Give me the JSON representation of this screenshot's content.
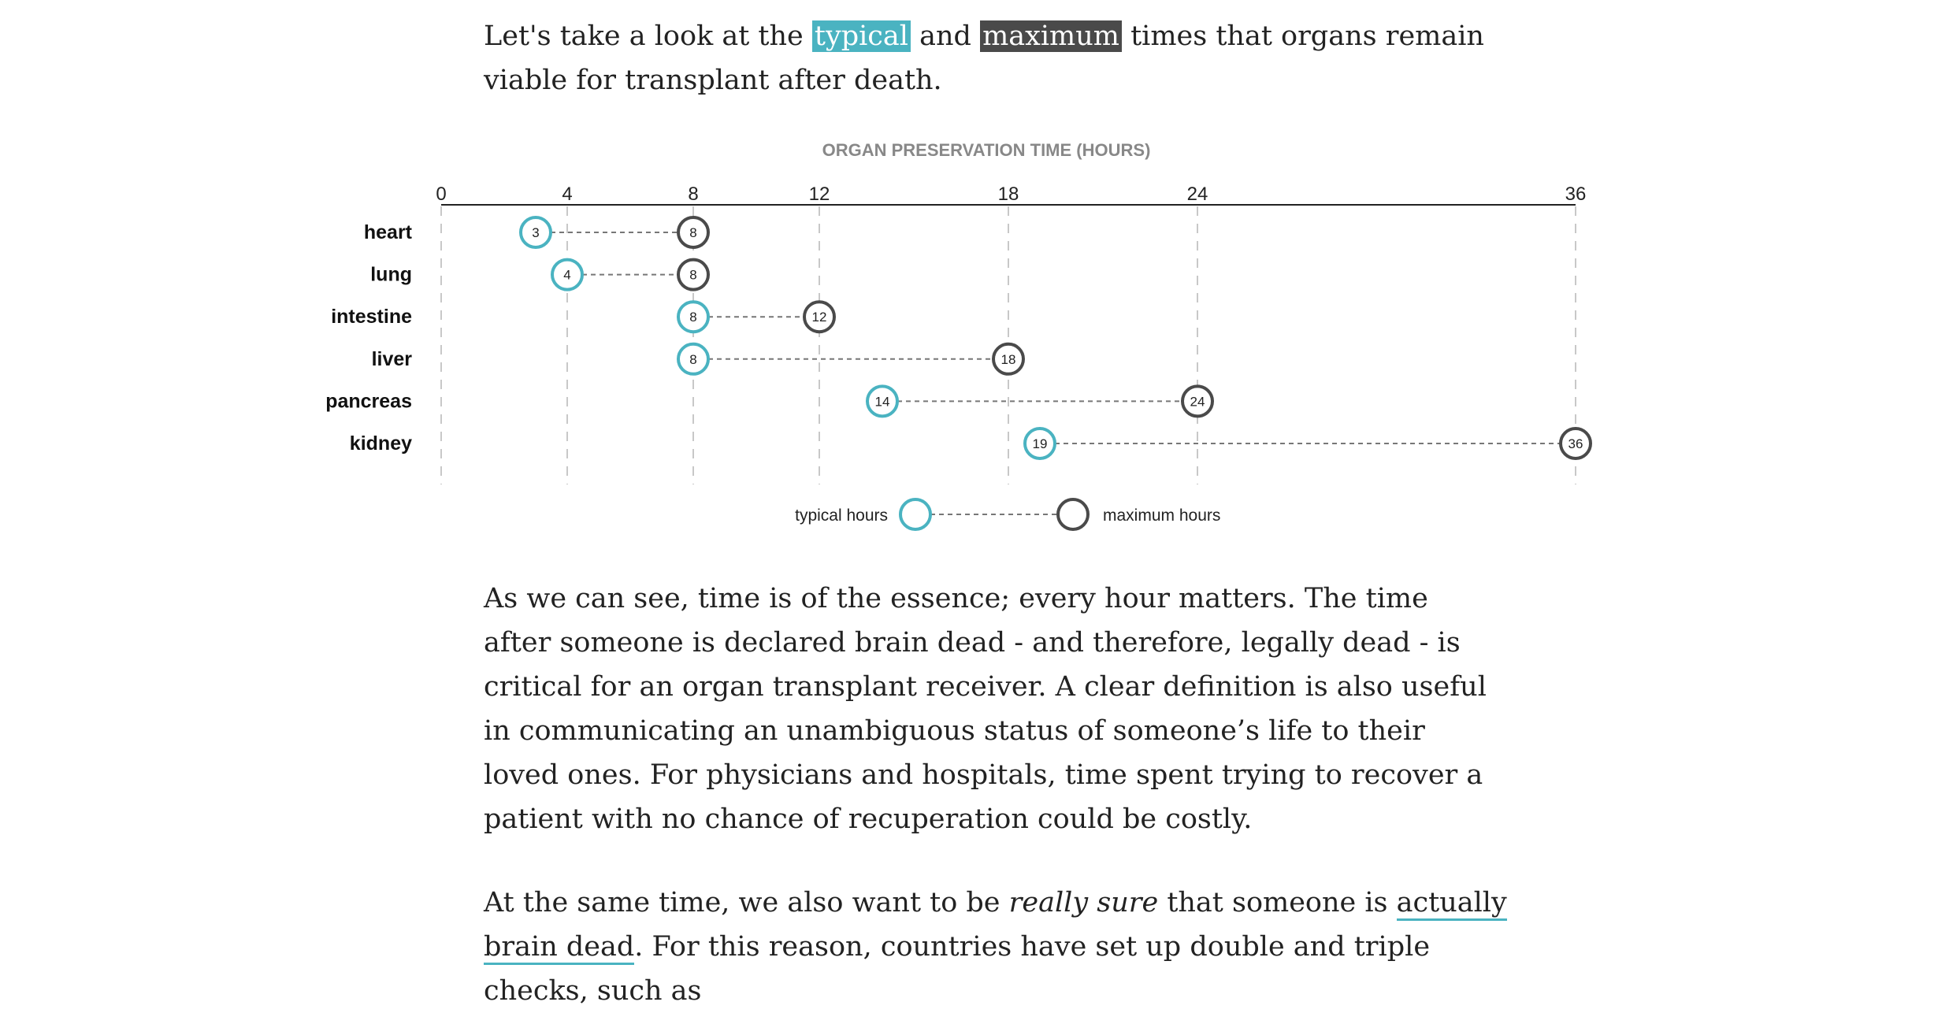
{
  "intro": {
    "before": "Let's take a look at the ",
    "typical": "typical",
    "mid": " and ",
    "maximum": "maximum",
    "after": " times that organs remain viable for transplant after death."
  },
  "chart_data": {
    "type": "dumbbell",
    "title": "ORGAN PRESERVATION TIME (HOURS)",
    "xlim": [
      0,
      36
    ],
    "ticks": [
      0,
      4,
      8,
      12,
      18,
      24,
      36
    ],
    "grid": true,
    "legend_position": "bottom-center",
    "categories": [
      "heart",
      "lung",
      "intestine",
      "liver",
      "pancreas",
      "kidney"
    ],
    "series": [
      {
        "name": "typical hours",
        "color": "#4ab3c1",
        "values": [
          3,
          4,
          8,
          8,
          14,
          19
        ]
      },
      {
        "name": "maximum hours",
        "color": "#4a4a4a",
        "values": [
          8,
          8,
          12,
          18,
          24,
          36
        ]
      }
    ]
  },
  "para1": "As we can see, time is of the essence; every hour matters. The time after someone is declared brain dead - and therefore, legally dead - is critical for an organ transplant receiver. A clear definition is also useful in communicating an unambiguous status of someone’s life to their loved ones. For physicians and hospitals, time spent trying to recover a patient with no chance of recuperation could be costly.",
  "para2": {
    "before": "At the same time, we also want to be ",
    "emph": "really sure",
    "mid": " that someone is ",
    "link": "actually brain dead",
    "after": ". For this reason, countries have set up double and triple checks, such as"
  }
}
